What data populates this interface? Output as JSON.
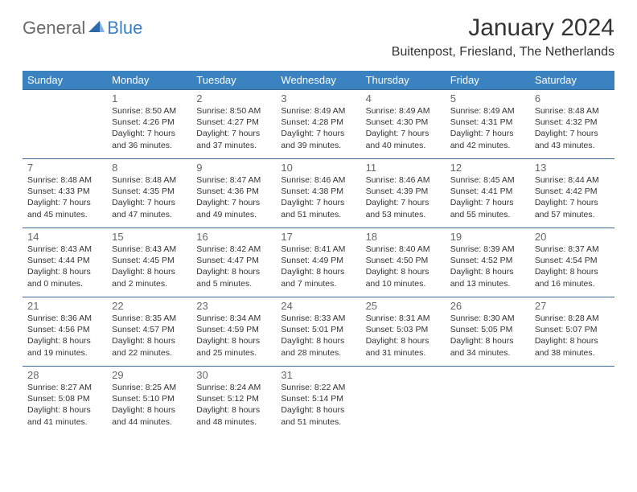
{
  "brand": {
    "part1": "General",
    "part2": "Blue"
  },
  "title": "January 2024",
  "location": "Buitenpost, Friesland, The Netherlands",
  "colors": {
    "header_bg": "#3b83c0",
    "row_border": "#3b6a94",
    "text": "#333333",
    "daynum": "#666666",
    "logo_gray": "#6a6a6a",
    "logo_blue": "#3b7fc4",
    "page_bg": "#ffffff"
  },
  "day_names": [
    "Sunday",
    "Monday",
    "Tuesday",
    "Wednesday",
    "Thursday",
    "Friday",
    "Saturday"
  ],
  "first_weekday_index": 1,
  "days": [
    {
      "n": 1,
      "sunrise": "8:50 AM",
      "sunset": "4:26 PM",
      "day_h": 7,
      "day_m": 36
    },
    {
      "n": 2,
      "sunrise": "8:50 AM",
      "sunset": "4:27 PM",
      "day_h": 7,
      "day_m": 37
    },
    {
      "n": 3,
      "sunrise": "8:49 AM",
      "sunset": "4:28 PM",
      "day_h": 7,
      "day_m": 39
    },
    {
      "n": 4,
      "sunrise": "8:49 AM",
      "sunset": "4:30 PM",
      "day_h": 7,
      "day_m": 40
    },
    {
      "n": 5,
      "sunrise": "8:49 AM",
      "sunset": "4:31 PM",
      "day_h": 7,
      "day_m": 42
    },
    {
      "n": 6,
      "sunrise": "8:48 AM",
      "sunset": "4:32 PM",
      "day_h": 7,
      "day_m": 43
    },
    {
      "n": 7,
      "sunrise": "8:48 AM",
      "sunset": "4:33 PM",
      "day_h": 7,
      "day_m": 45
    },
    {
      "n": 8,
      "sunrise": "8:48 AM",
      "sunset": "4:35 PM",
      "day_h": 7,
      "day_m": 47
    },
    {
      "n": 9,
      "sunrise": "8:47 AM",
      "sunset": "4:36 PM",
      "day_h": 7,
      "day_m": 49
    },
    {
      "n": 10,
      "sunrise": "8:46 AM",
      "sunset": "4:38 PM",
      "day_h": 7,
      "day_m": 51
    },
    {
      "n": 11,
      "sunrise": "8:46 AM",
      "sunset": "4:39 PM",
      "day_h": 7,
      "day_m": 53
    },
    {
      "n": 12,
      "sunrise": "8:45 AM",
      "sunset": "4:41 PM",
      "day_h": 7,
      "day_m": 55
    },
    {
      "n": 13,
      "sunrise": "8:44 AM",
      "sunset": "4:42 PM",
      "day_h": 7,
      "day_m": 57
    },
    {
      "n": 14,
      "sunrise": "8:43 AM",
      "sunset": "4:44 PM",
      "day_h": 8,
      "day_m": 0
    },
    {
      "n": 15,
      "sunrise": "8:43 AM",
      "sunset": "4:45 PM",
      "day_h": 8,
      "day_m": 2
    },
    {
      "n": 16,
      "sunrise": "8:42 AM",
      "sunset": "4:47 PM",
      "day_h": 8,
      "day_m": 5
    },
    {
      "n": 17,
      "sunrise": "8:41 AM",
      "sunset": "4:49 PM",
      "day_h": 8,
      "day_m": 7
    },
    {
      "n": 18,
      "sunrise": "8:40 AM",
      "sunset": "4:50 PM",
      "day_h": 8,
      "day_m": 10
    },
    {
      "n": 19,
      "sunrise": "8:39 AM",
      "sunset": "4:52 PM",
      "day_h": 8,
      "day_m": 13
    },
    {
      "n": 20,
      "sunrise": "8:37 AM",
      "sunset": "4:54 PM",
      "day_h": 8,
      "day_m": 16
    },
    {
      "n": 21,
      "sunrise": "8:36 AM",
      "sunset": "4:56 PM",
      "day_h": 8,
      "day_m": 19
    },
    {
      "n": 22,
      "sunrise": "8:35 AM",
      "sunset": "4:57 PM",
      "day_h": 8,
      "day_m": 22
    },
    {
      "n": 23,
      "sunrise": "8:34 AM",
      "sunset": "4:59 PM",
      "day_h": 8,
      "day_m": 25
    },
    {
      "n": 24,
      "sunrise": "8:33 AM",
      "sunset": "5:01 PM",
      "day_h": 8,
      "day_m": 28
    },
    {
      "n": 25,
      "sunrise": "8:31 AM",
      "sunset": "5:03 PM",
      "day_h": 8,
      "day_m": 31
    },
    {
      "n": 26,
      "sunrise": "8:30 AM",
      "sunset": "5:05 PM",
      "day_h": 8,
      "day_m": 34
    },
    {
      "n": 27,
      "sunrise": "8:28 AM",
      "sunset": "5:07 PM",
      "day_h": 8,
      "day_m": 38
    },
    {
      "n": 28,
      "sunrise": "8:27 AM",
      "sunset": "5:08 PM",
      "day_h": 8,
      "day_m": 41
    },
    {
      "n": 29,
      "sunrise": "8:25 AM",
      "sunset": "5:10 PM",
      "day_h": 8,
      "day_m": 44
    },
    {
      "n": 30,
      "sunrise": "8:24 AM",
      "sunset": "5:12 PM",
      "day_h": 8,
      "day_m": 48
    },
    {
      "n": 31,
      "sunrise": "8:22 AM",
      "sunset": "5:14 PM",
      "day_h": 8,
      "day_m": 51
    }
  ],
  "labels": {
    "sunrise": "Sunrise:",
    "sunset": "Sunset:",
    "daylight": "Daylight:",
    "hours": "hours",
    "and": "and",
    "minutes": "minutes."
  }
}
